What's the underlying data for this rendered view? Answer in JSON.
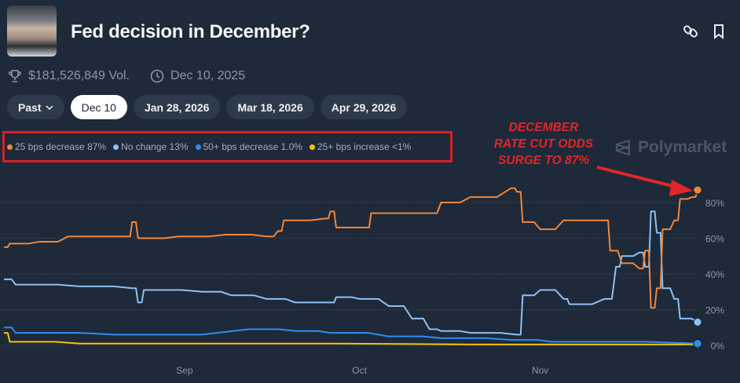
{
  "header": {
    "title": "Fed decision in December?",
    "link_icon": "link-icon",
    "bookmark_icon": "bookmark-icon"
  },
  "meta": {
    "volume": "$181,526,849 Vol.",
    "date": "Dec 10, 2025"
  },
  "tabs": [
    {
      "label": "Past"
    },
    {
      "label": "Dec 10",
      "active": true
    },
    {
      "label": "Jan 28, 2026"
    },
    {
      "label": "Mar 18, 2026"
    },
    {
      "label": "Apr 29, 2026"
    }
  ],
  "legend": [
    {
      "label": "25 bps decrease 87%",
      "color": "#f0873a"
    },
    {
      "label": "No change 13%",
      "color": "#8ec1f4"
    },
    {
      "label": "50+ bps decrease 1.0%",
      "color": "#2f8df0"
    },
    {
      "label": "25+ bps increase <1%",
      "color": "#f4c20d"
    }
  ],
  "annotation": {
    "lines": [
      "DECEMBER",
      "RATE CUT ODDS",
      "SURGE TO 87%"
    ],
    "color": "#e0262b"
  },
  "brand": "Polymarket",
  "chart_data": {
    "type": "line",
    "xlim": [
      "2025-08-01",
      "2025-11-28"
    ],
    "ylim": [
      0,
      100
    ],
    "y_ticks": [
      {
        "v": 0,
        "label": "0%"
      },
      {
        "v": 20,
        "label": "20%"
      },
      {
        "v": 40,
        "label": "40%"
      },
      {
        "v": 60,
        "label": "60%"
      },
      {
        "v": 80,
        "label": "80%"
      }
    ],
    "x_ticks": [
      {
        "date": "2025-09-01",
        "label": "Sep"
      },
      {
        "date": "2025-10-01",
        "label": "Oct"
      },
      {
        "date": "2025-11-01",
        "label": "Nov"
      }
    ],
    "grid": true,
    "series": [
      {
        "name": "25 bps decrease",
        "color": "#f0873a",
        "points": [
          [
            "2025-08-01",
            55
          ],
          [
            "2025-08-02",
            57
          ],
          [
            "2025-08-07",
            58
          ],
          [
            "2025-08-12",
            61
          ],
          [
            "2025-08-22",
            61
          ],
          [
            "2025-08-23",
            69
          ],
          [
            "2025-08-24",
            60
          ],
          [
            "2025-08-31",
            61
          ],
          [
            "2025-09-08",
            62
          ],
          [
            "2025-09-15",
            61
          ],
          [
            "2025-09-17",
            64
          ],
          [
            "2025-09-18",
            70
          ],
          [
            "2025-09-25",
            71
          ],
          [
            "2025-09-26",
            75
          ],
          [
            "2025-09-27",
            66
          ],
          [
            "2025-10-02",
            66
          ],
          [
            "2025-10-03",
            74
          ],
          [
            "2025-10-13",
            74
          ],
          [
            "2025-10-15",
            80
          ],
          [
            "2025-10-20",
            83
          ],
          [
            "2025-10-27",
            88
          ],
          [
            "2025-10-28",
            86
          ],
          [
            "2025-10-29",
            69
          ],
          [
            "2025-11-01",
            65
          ],
          [
            "2025-11-05",
            70
          ],
          [
            "2025-11-12",
            70
          ],
          [
            "2025-11-13",
            53
          ],
          [
            "2025-11-15",
            46
          ],
          [
            "2025-11-18",
            43
          ],
          [
            "2025-11-19",
            53
          ],
          [
            "2025-11-20",
            21
          ],
          [
            "2025-11-21",
            32
          ],
          [
            "2025-11-22",
            65
          ],
          [
            "2025-11-24",
            70
          ],
          [
            "2025-11-25",
            82
          ],
          [
            "2025-11-27",
            83
          ],
          [
            "2025-11-28",
            87
          ]
        ]
      },
      {
        "name": "No change",
        "color": "#8ec1f4",
        "points": [
          [
            "2025-08-01",
            37
          ],
          [
            "2025-08-03",
            34
          ],
          [
            "2025-08-14",
            33
          ],
          [
            "2025-08-23",
            32
          ],
          [
            "2025-08-24",
            24
          ],
          [
            "2025-08-25",
            31
          ],
          [
            "2025-09-04",
            30
          ],
          [
            "2025-09-09",
            28
          ],
          [
            "2025-09-15",
            26
          ],
          [
            "2025-09-20",
            24
          ],
          [
            "2025-09-26",
            24
          ],
          [
            "2025-09-27",
            27
          ],
          [
            "2025-10-01",
            26
          ],
          [
            "2025-10-06",
            22
          ],
          [
            "2025-10-10",
            15
          ],
          [
            "2025-10-13",
            9
          ],
          [
            "2025-10-15",
            8
          ],
          [
            "2025-10-20",
            7
          ],
          [
            "2025-10-28",
            6
          ],
          [
            "2025-10-29",
            28
          ],
          [
            "2025-11-01",
            31
          ],
          [
            "2025-11-05",
            26
          ],
          [
            "2025-11-06",
            23
          ],
          [
            "2025-11-12",
            26
          ],
          [
            "2025-11-14",
            44
          ],
          [
            "2025-11-15",
            50
          ],
          [
            "2025-11-18",
            52
          ],
          [
            "2025-11-19",
            44
          ],
          [
            "2025-11-20",
            75
          ],
          [
            "2025-11-21",
            63
          ],
          [
            "2025-11-22",
            32
          ],
          [
            "2025-11-24",
            26
          ],
          [
            "2025-11-25",
            15
          ],
          [
            "2025-11-28",
            13
          ]
        ]
      },
      {
        "name": "50+ bps decrease",
        "color": "#2f8df0",
        "points": [
          [
            "2025-08-01",
            10
          ],
          [
            "2025-08-03",
            7
          ],
          [
            "2025-08-20",
            6
          ],
          [
            "2025-09-12",
            9
          ],
          [
            "2025-09-20",
            8
          ],
          [
            "2025-09-26",
            7
          ],
          [
            "2025-10-06",
            5
          ],
          [
            "2025-10-15",
            4
          ],
          [
            "2025-10-27",
            3
          ],
          [
            "2025-11-03",
            2
          ],
          [
            "2025-11-28",
            1
          ]
        ]
      },
      {
        "name": "25+ bps increase",
        "color": "#f4c20d",
        "points": [
          [
            "2025-08-01",
            7
          ],
          [
            "2025-08-02",
            2
          ],
          [
            "2025-08-14",
            1
          ],
          [
            "2025-10-20",
            0.5
          ],
          [
            "2025-11-28",
            0.5
          ]
        ]
      }
    ]
  }
}
